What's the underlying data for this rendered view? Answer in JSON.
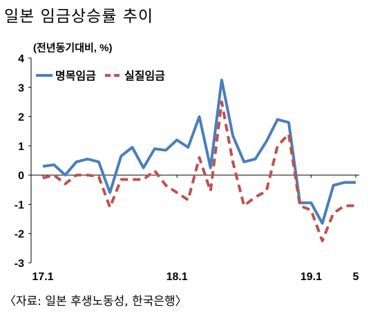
{
  "title": "일본 임금상승률 추이",
  "source": "〈자료: 일본 후생노동성, 한국은행〉",
  "chart_data": {
    "type": "line",
    "title": "일본 임금상승률 추이",
    "unit_label": "(전년동기대비, %)",
    "xlabel": "",
    "ylabel": "",
    "ylim": [
      -3,
      4
    ],
    "yticks": [
      -3,
      -2,
      -1,
      0,
      1,
      2,
      3,
      4
    ],
    "x_tick_labels": [
      {
        "index": 0,
        "label": "17.1"
      },
      {
        "index": 12,
        "label": "18.1"
      },
      {
        "index": 24,
        "label": "19.1"
      },
      {
        "index": 28,
        "label": "5"
      }
    ],
    "x": [
      "17.1",
      "17.2",
      "17.3",
      "17.4",
      "17.5",
      "17.6",
      "17.7",
      "17.8",
      "17.9",
      "17.10",
      "17.11",
      "17.12",
      "18.1",
      "18.2",
      "18.3",
      "18.4",
      "18.5",
      "18.6",
      "18.7",
      "18.8",
      "18.9",
      "18.10",
      "18.11",
      "18.12",
      "19.1",
      "19.2",
      "19.3",
      "19.4",
      "19.5"
    ],
    "legend_position": "top-left",
    "series": [
      {
        "name": "명목임금",
        "color": "#4a7ebb",
        "style": "solid",
        "values": [
          0.3,
          0.35,
          0.0,
          0.45,
          0.55,
          0.45,
          -0.6,
          0.65,
          0.95,
          0.25,
          0.9,
          0.85,
          1.2,
          0.95,
          2.0,
          0.25,
          3.25,
          1.35,
          0.45,
          0.55,
          1.15,
          1.9,
          1.8,
          -0.95,
          -0.95,
          -1.65,
          -0.35,
          -0.25,
          -0.25
        ]
      },
      {
        "name": "실질임금",
        "color": "#c0504d",
        "style": "dashed",
        "values": [
          -0.1,
          0.0,
          -0.3,
          0.0,
          0.0,
          -0.05,
          -1.1,
          -0.15,
          -0.15,
          -0.15,
          0.15,
          -0.35,
          -0.6,
          -0.85,
          0.6,
          -0.55,
          2.5,
          0.45,
          -1.05,
          -0.75,
          -0.55,
          1.0,
          1.4,
          -1.05,
          -1.2,
          -2.25,
          -1.3,
          -1.05,
          -1.05
        ]
      }
    ]
  }
}
